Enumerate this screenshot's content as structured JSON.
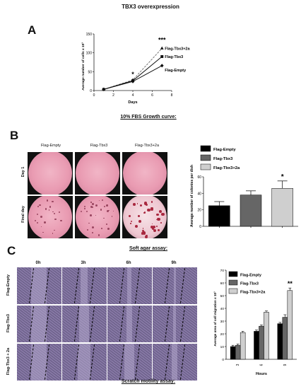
{
  "figure_title": "TBX3 overexpression",
  "panels": {
    "a": {
      "label": "A",
      "caption": "10% FBS  Growth curve:"
    },
    "b": {
      "label": "B",
      "caption": "Soft agar assay:",
      "columns": [
        "Flag-Empty",
        "Flag-Tbx3",
        "Flag-Tbx3+2a"
      ],
      "rows": [
        "Day 1",
        "Final day"
      ]
    },
    "c": {
      "label": "C",
      "caption": "Scratch motility assay:",
      "columns": [
        "0h",
        "3h",
        "6h",
        "9h"
      ],
      "rows": [
        "Flag-Empty",
        "Flag-Tbx3",
        "Flag-Tbx3 + 2a"
      ]
    }
  },
  "colors": {
    "empty": "#000000",
    "tbx3": "#666666",
    "tbx3_2a": "#cfcfcf"
  },
  "chart_data": [
    {
      "type": "line",
      "xlabel": "Days",
      "ylabel": "Average number of cells x 10³",
      "xlim": [
        0,
        8
      ],
      "ylim": [
        0,
        150
      ],
      "xticks": [
        0,
        2,
        4,
        6,
        8
      ],
      "yticks": [
        0,
        50,
        100,
        150
      ],
      "x": [
        1,
        4,
        7
      ],
      "series": [
        {
          "name": "Flag-Tbx3+2a",
          "values": [
            3,
            28,
            112
          ],
          "marker": "triangle",
          "dash": true
        },
        {
          "name": "Flag-Tbx3",
          "values": [
            3,
            26,
            90
          ],
          "marker": "square",
          "dash": false
        },
        {
          "name": "Flag-Empty",
          "values": [
            3,
            24,
            66
          ],
          "marker": "diamond",
          "dash": false
        }
      ],
      "annotations": [
        {
          "x": 4,
          "text": "*"
        },
        {
          "x": 7,
          "text": "***"
        }
      ],
      "legend": "right"
    },
    {
      "type": "bar",
      "ylabel": "Average number of colonies per dish",
      "ylim": [
        0,
        60
      ],
      "yticks": [
        0,
        20,
        40,
        60
      ],
      "categories": [
        "Flag-Empty",
        "Flag-Tbx3",
        "Flag-Tbx3+2a"
      ],
      "values": [
        25,
        38,
        46
      ],
      "errors": [
        5,
        5,
        9
      ],
      "annotations": [
        {
          "category": "Flag-Tbx3+2a",
          "text": "*"
        }
      ],
      "legend": "top"
    },
    {
      "type": "bar",
      "xlabel": "Hours",
      "ylabel": "Average area of cell migration x 10³",
      "ylim": [
        0,
        70
      ],
      "yticks": [
        0,
        10,
        20,
        30,
        40,
        50,
        60,
        70
      ],
      "categories": [
        "3",
        "6",
        "9"
      ],
      "series": [
        {
          "name": "Flag-Empty",
          "values": [
            10,
            22,
            28
          ],
          "errors": [
            1,
            1,
            1
          ]
        },
        {
          "name": "Flag-Tbx3",
          "values": [
            11,
            26,
            33
          ],
          "errors": [
            1,
            1,
            2
          ]
        },
        {
          "name": "Flag-Tbx3+2a",
          "values": [
            21,
            37,
            54
          ],
          "errors": [
            1,
            1,
            2
          ]
        }
      ],
      "annotations": [
        {
          "category": "9",
          "text": "**"
        }
      ],
      "legend": "top-left"
    }
  ]
}
